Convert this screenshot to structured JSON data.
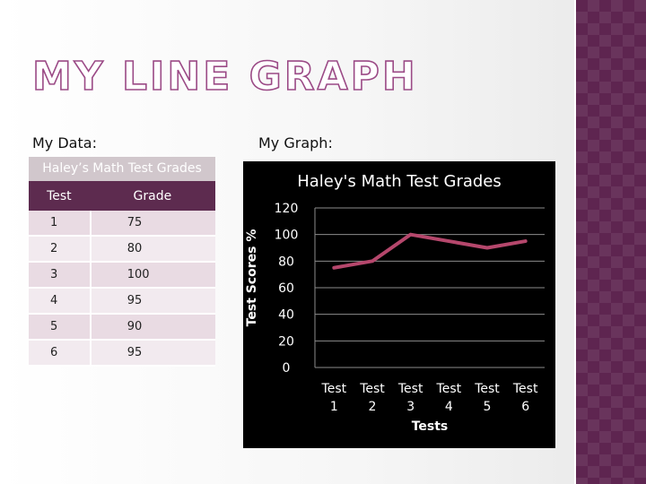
{
  "slide": {
    "title": "MY LINE GRAPH",
    "data_label": "My Data:",
    "graph_label": "My Graph:"
  },
  "table": {
    "caption": "Haley’s Math Test Grades",
    "headers": [
      "Test",
      "Grade"
    ],
    "rows": [
      [
        "1",
        "75"
      ],
      [
        "2",
        "80"
      ],
      [
        "3",
        "100"
      ],
      [
        "4",
        "95"
      ],
      [
        "5",
        "90"
      ],
      [
        "6",
        "95"
      ]
    ]
  },
  "chart_data": {
    "type": "line",
    "title": "Haley's Math Test Grades",
    "xlabel": "Tests",
    "ylabel": "Test Scores %",
    "categories": [
      [
        "Test",
        "1"
      ],
      [
        "Test",
        "2"
      ],
      [
        "Test",
        "3"
      ],
      [
        "Test",
        "4"
      ],
      [
        "Test",
        "5"
      ],
      [
        "Test",
        "6"
      ]
    ],
    "series": [
      {
        "values": [
          75,
          80,
          100,
          95,
          90,
          95
        ],
        "color": "#b5476c"
      }
    ],
    "ylim": [
      0,
      120
    ],
    "yticks": [
      "0",
      "20",
      "40",
      "60",
      "80",
      "100",
      "120"
    ],
    "grid": true,
    "legend": "none",
    "background": "#000000",
    "text_color": "#ffffff",
    "grid_color": "#8c8c8c"
  },
  "colors": {
    "accent": "#5d2b4f",
    "title_outline": "#9b4a86",
    "side_strip": "#5e2550"
  }
}
